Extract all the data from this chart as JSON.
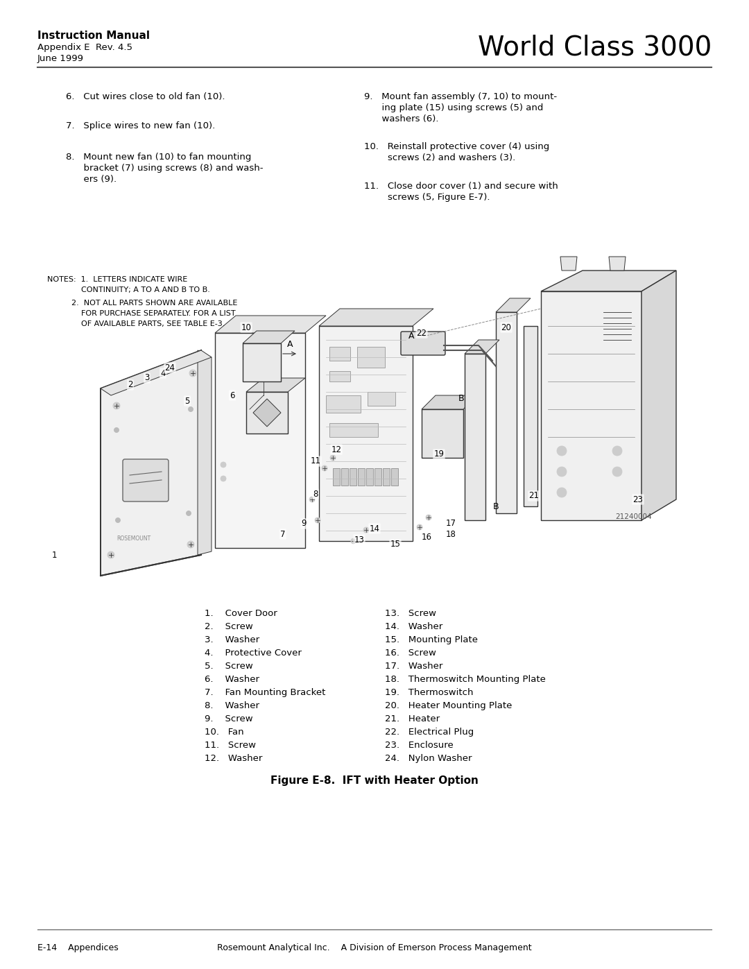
{
  "title_bold": "Instruction Manual",
  "title_sub1": "Appendix E  Rev. 4.5",
  "title_sub2": "June 1999",
  "title_right": "World Class 3000",
  "page_left": "E-14    Appendices",
  "page_right": "Rosemount Analytical Inc.    A Division of Emerson Process Management",
  "step6": "6.   Cut wires close to old fan (10).",
  "step7": "7.   Splice wires to new fan (10).",
  "step8_line1": "8.   Mount new fan (10) to fan mounting",
  "step8_line2": "      bracket (7) using screws (8) and wash-",
  "step8_line3": "      ers (9).",
  "step9_line1": "9.   Mount fan assembly (7, 10) to mount-",
  "step9_line2": "      ing plate (15) using screws (5) and",
  "step9_line3": "      washers (6).",
  "step10_line1": "10.   Reinstall protective cover (4) using",
  "step10_line2": "        screws (2) and washers (3).",
  "step11_line1": "11.   Close door cover (1) and secure with",
  "step11_line2": "        screws (5, Figure E-7).",
  "notes_line1": "NOTES:  1.  LETTERS INDICATE WIRE",
  "notes_line2": "              CONTINUITY; A TO A AND B TO B.",
  "notes_line3": "          2.  NOT ALL PARTS SHOWN ARE AVAILABLE",
  "notes_line4": "              FOR PURCHASE SEPARATELY. FOR A LIST",
  "notes_line5": "              OF AVAILABLE PARTS, SEE TABLE E-3.",
  "fig_caption": "Figure E-8.  IFT with Heater Option",
  "part_num_text": "21240004",
  "parts_col1": [
    "1.    Cover Door",
    "2.    Screw",
    "3.    Washer",
    "4.    Protective Cover",
    "5.    Screw",
    "6.    Washer",
    "7.    Fan Mounting Bracket",
    "8.    Washer",
    "9.    Screw",
    "10.   Fan",
    "11.   Screw",
    "12.   Washer"
  ],
  "parts_col2": [
    "13.   Screw",
    "14.   Washer",
    "15.   Mounting Plate",
    "16.   Screw",
    "17.   Washer",
    "18.   Thermoswitch Mounting Plate",
    "19.   Thermoswitch",
    "20.   Heater Mounting Plate",
    "21.   Heater",
    "22.   Electrical Plug",
    "23.   Enclosure",
    "24.   Nylon Washer"
  ],
  "bg_color": "#ffffff",
  "text_color": "#000000",
  "line_color": "#808080",
  "draw_color": "#333333"
}
